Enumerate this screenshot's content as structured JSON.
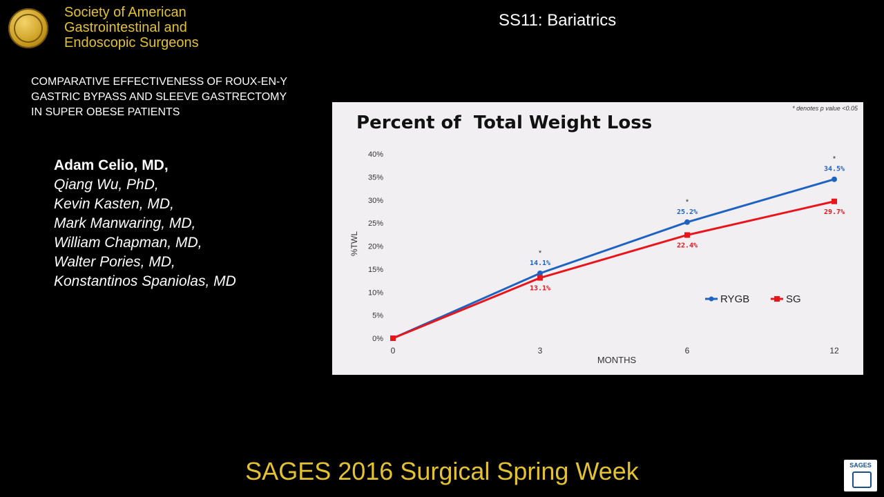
{
  "org": {
    "lines": [
      "Society of American",
      "Gastrointestinal and",
      "Endoscopic Surgeons"
    ]
  },
  "session": "SS11: Bariatrics",
  "paper_title": {
    "lines": [
      "COMPARATIVE EFFECTIVENESS OF ROUX-EN-Y",
      "GASTRIC BYPASS AND SLEEVE GASTRECTOMY",
      "IN SUPER OBESE PATIENTS"
    ]
  },
  "authors": {
    "presenter": "Adam Celio, MD,",
    "coauthors": [
      "Qiang Wu, PhD,",
      "Kevin Kasten, MD,",
      "Mark Manwaring, MD,",
      "William Chapman, MD,",
      "Walter Pories, MD,",
      "Konstantinos Spaniolas, MD"
    ]
  },
  "footer": "SAGES 2016 Surgical Spring Week",
  "tv_logo": {
    "text": "SAGES",
    "icon": "sages-tv-icon"
  },
  "colors": {
    "gold": "#e2c233",
    "rygb": "#1f63c0",
    "sg": "#e8151b"
  },
  "chart_data": {
    "type": "line",
    "title": "Percent of  Total Weight Loss",
    "note": "* denotes p value <0.05",
    "xlabel": "MONTHS",
    "ylabel": "%TWL",
    "x": [
      0,
      3,
      6,
      12
    ],
    "x_ticks": [
      "0",
      "3",
      "6",
      "12"
    ],
    "y_ticks": [
      "0%",
      "5%",
      "10%",
      "15%",
      "20%",
      "25%",
      "30%",
      "35%",
      "40%"
    ],
    "ylim": [
      0,
      40
    ],
    "grid": false,
    "legend_position": "bottom-right",
    "series": [
      {
        "name": "RYGB",
        "values": [
          0,
          14.1,
          25.2,
          34.5
        ],
        "labels": [
          "",
          "14.1%",
          "25.2%",
          "34.5%"
        ],
        "color": "#1f63c0"
      },
      {
        "name": "SG",
        "values": [
          0,
          13.1,
          22.4,
          29.7
        ],
        "labels": [
          "",
          "13.1%",
          "22.4%",
          "29.7%"
        ],
        "color": "#e8151b"
      }
    ],
    "significance_markers": [
      "",
      "*",
      "*",
      "*"
    ]
  }
}
